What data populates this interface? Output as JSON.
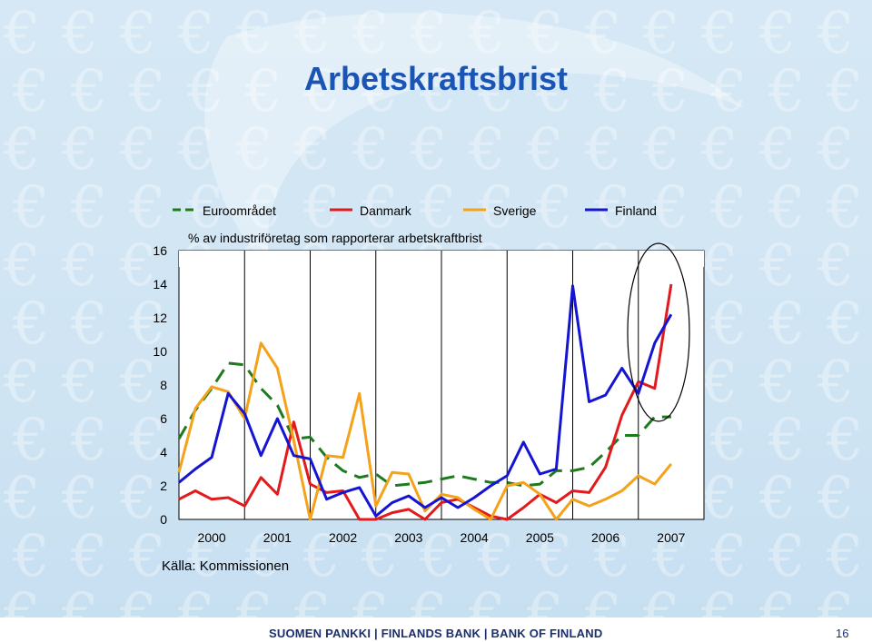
{
  "slide": {
    "title": "Arbetskraftsbrist",
    "source": "Källa: Kommissionen",
    "footer": "SUOMEN PANKKI | FINLANDS BANK | BANK OF FINLAND",
    "page_number": "16",
    "background_glyph": "€"
  },
  "chart_data": {
    "type": "line",
    "title": "",
    "note": "% av industriföretag som rapporterar arbetskraftbrist",
    "xlabel": "",
    "ylabel": "",
    "ylim": [
      0,
      16
    ],
    "yticks": [
      "0",
      "2",
      "4",
      "6",
      "8",
      "10",
      "12",
      "14",
      "16"
    ],
    "xlim": [
      2000,
      2008
    ],
    "xticks": [
      "2000",
      "2001",
      "2002",
      "2003",
      "2004",
      "2005",
      "2006",
      "2007"
    ],
    "grid": "vertical lines at year boundaries",
    "legend_position": "top",
    "highlight": "ellipse around 2007 values",
    "x": [
      2000.0,
      2000.25,
      2000.5,
      2000.75,
      2001.0,
      2001.25,
      2001.5,
      2001.75,
      2002.0,
      2002.25,
      2002.5,
      2002.75,
      2003.0,
      2003.25,
      2003.5,
      2003.75,
      2004.0,
      2004.25,
      2004.5,
      2004.75,
      2005.0,
      2005.25,
      2005.5,
      2005.75,
      2006.0,
      2006.25,
      2006.5,
      2006.75,
      2007.0,
      2007.25,
      2007.5
    ],
    "series": [
      {
        "name": "Euroområdet",
        "color": "#1f7a1f",
        "dash": true,
        "values": [
          4.8,
          6.5,
          7.8,
          9.3,
          9.2,
          7.8,
          6.8,
          4.8,
          4.9,
          3.7,
          2.9,
          2.5,
          2.7,
          2.0,
          2.1,
          2.2,
          2.4,
          2.6,
          2.4,
          2.2,
          2.2,
          2.0,
          2.1,
          2.9,
          2.9,
          3.1,
          4.0,
          5.0,
          5.0,
          6.1,
          6.1
        ]
      },
      {
        "name": "Danmark",
        "color": "#e31a1c",
        "dash": false,
        "values": [
          1.2,
          1.7,
          1.2,
          1.3,
          0.8,
          2.5,
          1.5,
          5.8,
          2.1,
          1.6,
          1.7,
          0.0,
          0.0,
          0.4,
          0.6,
          0.0,
          1.0,
          1.2,
          0.7,
          0.2,
          0.0,
          0.7,
          1.5,
          1.0,
          1.7,
          1.6,
          3.1,
          6.2,
          8.2,
          7.8,
          14.0
        ]
      },
      {
        "name": "Sverige",
        "color": "#f3a21a",
        "dash": false,
        "values": [
          2.8,
          6.6,
          7.9,
          7.6,
          6.0,
          10.5,
          9.0,
          4.7,
          0.0,
          3.8,
          3.7,
          7.5,
          0.8,
          2.8,
          2.7,
          0.5,
          1.5,
          1.3,
          0.6,
          0.0,
          2.0,
          2.2,
          1.5,
          0.0,
          1.2,
          0.8,
          1.2,
          1.7,
          2.6,
          2.1,
          3.3
        ]
      },
      {
        "name": "Finland",
        "color": "#1414d2",
        "dash": false,
        "values": [
          2.2,
          3.0,
          3.7,
          7.5,
          6.3,
          3.8,
          6.0,
          3.8,
          3.6,
          1.2,
          1.6,
          1.9,
          0.2,
          1.0,
          1.4,
          0.7,
          1.3,
          0.7,
          1.3,
          2.0,
          2.6,
          4.6,
          2.7,
          3.0,
          13.9,
          7.0,
          7.4,
          9.0,
          7.5,
          10.5,
          12.2
        ]
      }
    ]
  }
}
